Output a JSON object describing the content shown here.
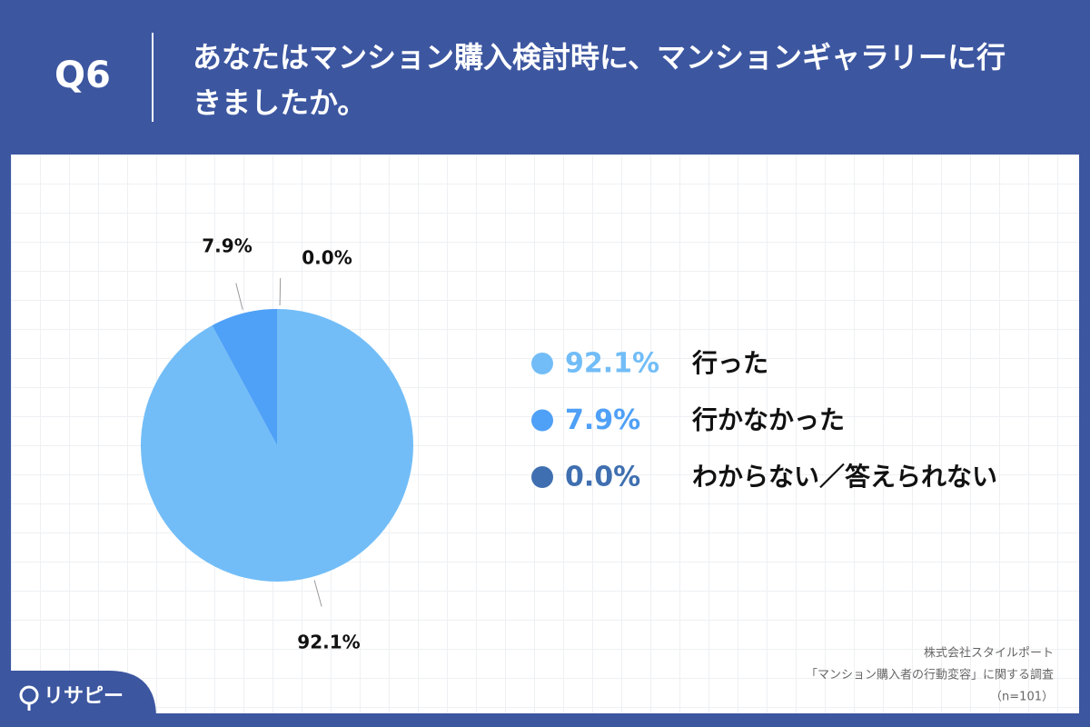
{
  "header": {
    "question_number": "Q6"
  },
  "chart_data": {
    "type": "pie",
    "title": "あなたはマンション購入検討時に、マンションギャラリーに行きましたか。",
    "categories": [
      "行った",
      "行かなかった",
      "わからない／答えられない"
    ],
    "values": [
      92.1,
      7.9,
      0.0
    ],
    "value_labels": [
      "92.1%",
      "7.9%",
      "0.0%"
    ],
    "colors": [
      "#72bdf7",
      "#4fa0f7",
      "#3f6fb0"
    ]
  },
  "footer": {
    "logo": "リサピー",
    "source": [
      "株式会社スタイルポート",
      "「マンション購入者の行動変容」に関する調査",
      "（n=101）"
    ]
  }
}
